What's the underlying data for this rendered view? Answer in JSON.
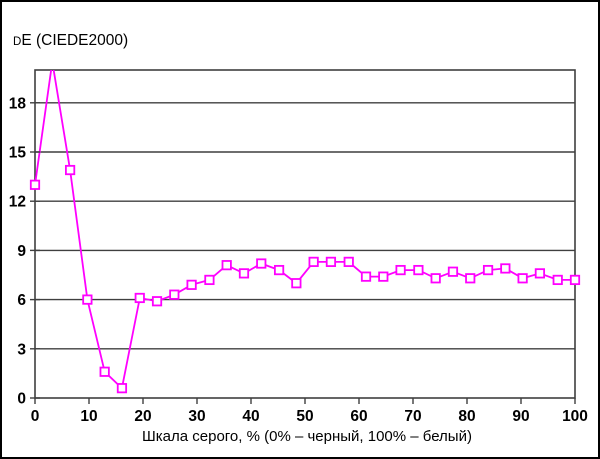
{
  "window": {
    "background": "#ffffff",
    "border_color": "#000000"
  },
  "chart_data": {
    "type": "line",
    "title": "DE (CIEDE2000)",
    "title_parts": {
      "small_cap": "D",
      "rest": "E (CIEDE2000)"
    },
    "xlabel": "Шкала серого, % (0% – черный, 100% – белый)",
    "ylabel": "",
    "xlim": [
      0,
      100
    ],
    "ylim": [
      0,
      20
    ],
    "x_ticks": [
      0,
      10,
      20,
      30,
      40,
      50,
      60,
      70,
      80,
      90,
      100
    ],
    "y_ticks": [
      0,
      3,
      6,
      9,
      12,
      15,
      18
    ],
    "grid": "horizontal-only",
    "legend_position": "none",
    "frame_color": "#3f3f3f",
    "grid_color": "#3f3f3f",
    "text_color": "#000000",
    "series": [
      {
        "name": "dE (CIEDE2000)",
        "color": "#ff00ff",
        "marker": "open-square",
        "marker_fill": "#ffffff",
        "peak_clipped_at_top": true,
        "x": [
          0,
          3.2,
          6.5,
          9.7,
          12.9,
          16.1,
          19.4,
          22.6,
          25.8,
          29.0,
          32.3,
          35.5,
          38.7,
          41.9,
          45.2,
          48.4,
          51.6,
          54.8,
          58.1,
          61.3,
          64.5,
          67.7,
          71.0,
          74.2,
          77.4,
          80.6,
          83.9,
          87.1,
          90.3,
          93.5,
          96.8,
          100
        ],
        "y": [
          13.0,
          20.5,
          13.9,
          6.0,
          1.6,
          0.6,
          6.1,
          5.9,
          6.3,
          6.9,
          7.2,
          8.1,
          7.6,
          8.2,
          7.8,
          7.0,
          8.3,
          8.3,
          8.3,
          7.4,
          7.4,
          7.8,
          7.8,
          7.3,
          7.7,
          7.3,
          7.8,
          7.9,
          7.3,
          7.6,
          7.2,
          7.2
        ]
      }
    ]
  }
}
